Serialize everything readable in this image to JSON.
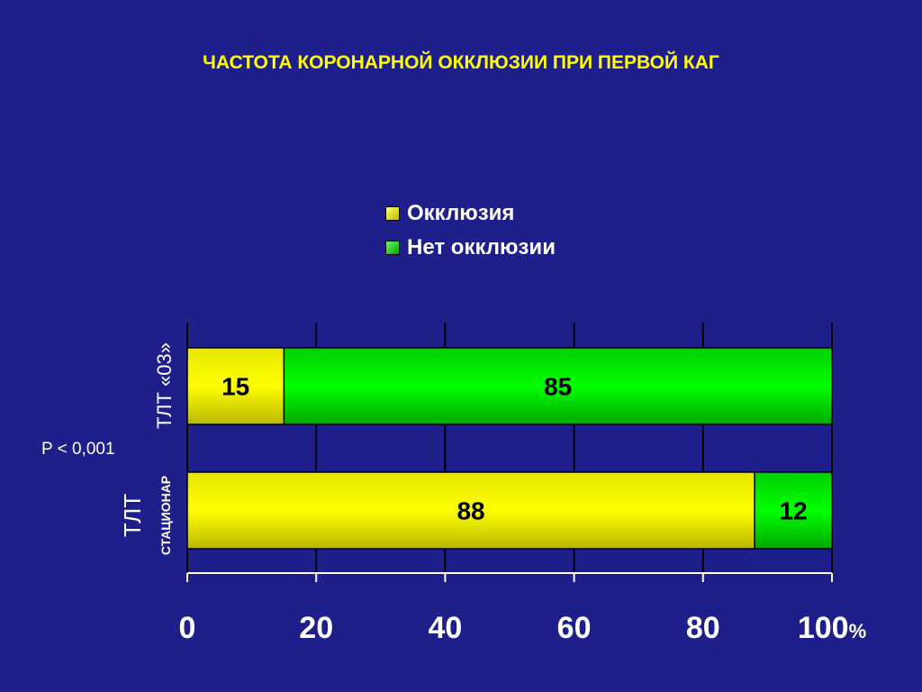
{
  "title": "ЧАСТОТА КОРОНАРНОЙ ОККЛЮЗИИ ПРИ ПЕРВОЙ КАГ",
  "p_value": "P < 0,001",
  "colors": {
    "background": "#1f1f8c",
    "occlusion": "#ffff00",
    "no_occlusion": "#00ee00",
    "title": "#ffff00"
  },
  "chart_data": {
    "type": "bar",
    "orientation": "horizontal",
    "stacked": true,
    "categories": [
      {
        "main": "ТЛТ «03»",
        "sub": ""
      },
      {
        "main": "ТЛТ",
        "sub": "СТАЦИОНАР"
      }
    ],
    "series": [
      {
        "name": "Окклюзия",
        "values": [
          15,
          88
        ],
        "color": "#ffff00"
      },
      {
        "name": "Нет окклюзии",
        "values": [
          85,
          12
        ],
        "color": "#00ee00"
      }
    ],
    "xlim": [
      0,
      100
    ],
    "xticks": [
      0,
      20,
      40,
      60,
      80,
      100
    ],
    "xtick_labels": [
      "0",
      "20",
      "40",
      "60",
      "80",
      "100%"
    ],
    "grid": true,
    "legend_position": "top-center"
  }
}
